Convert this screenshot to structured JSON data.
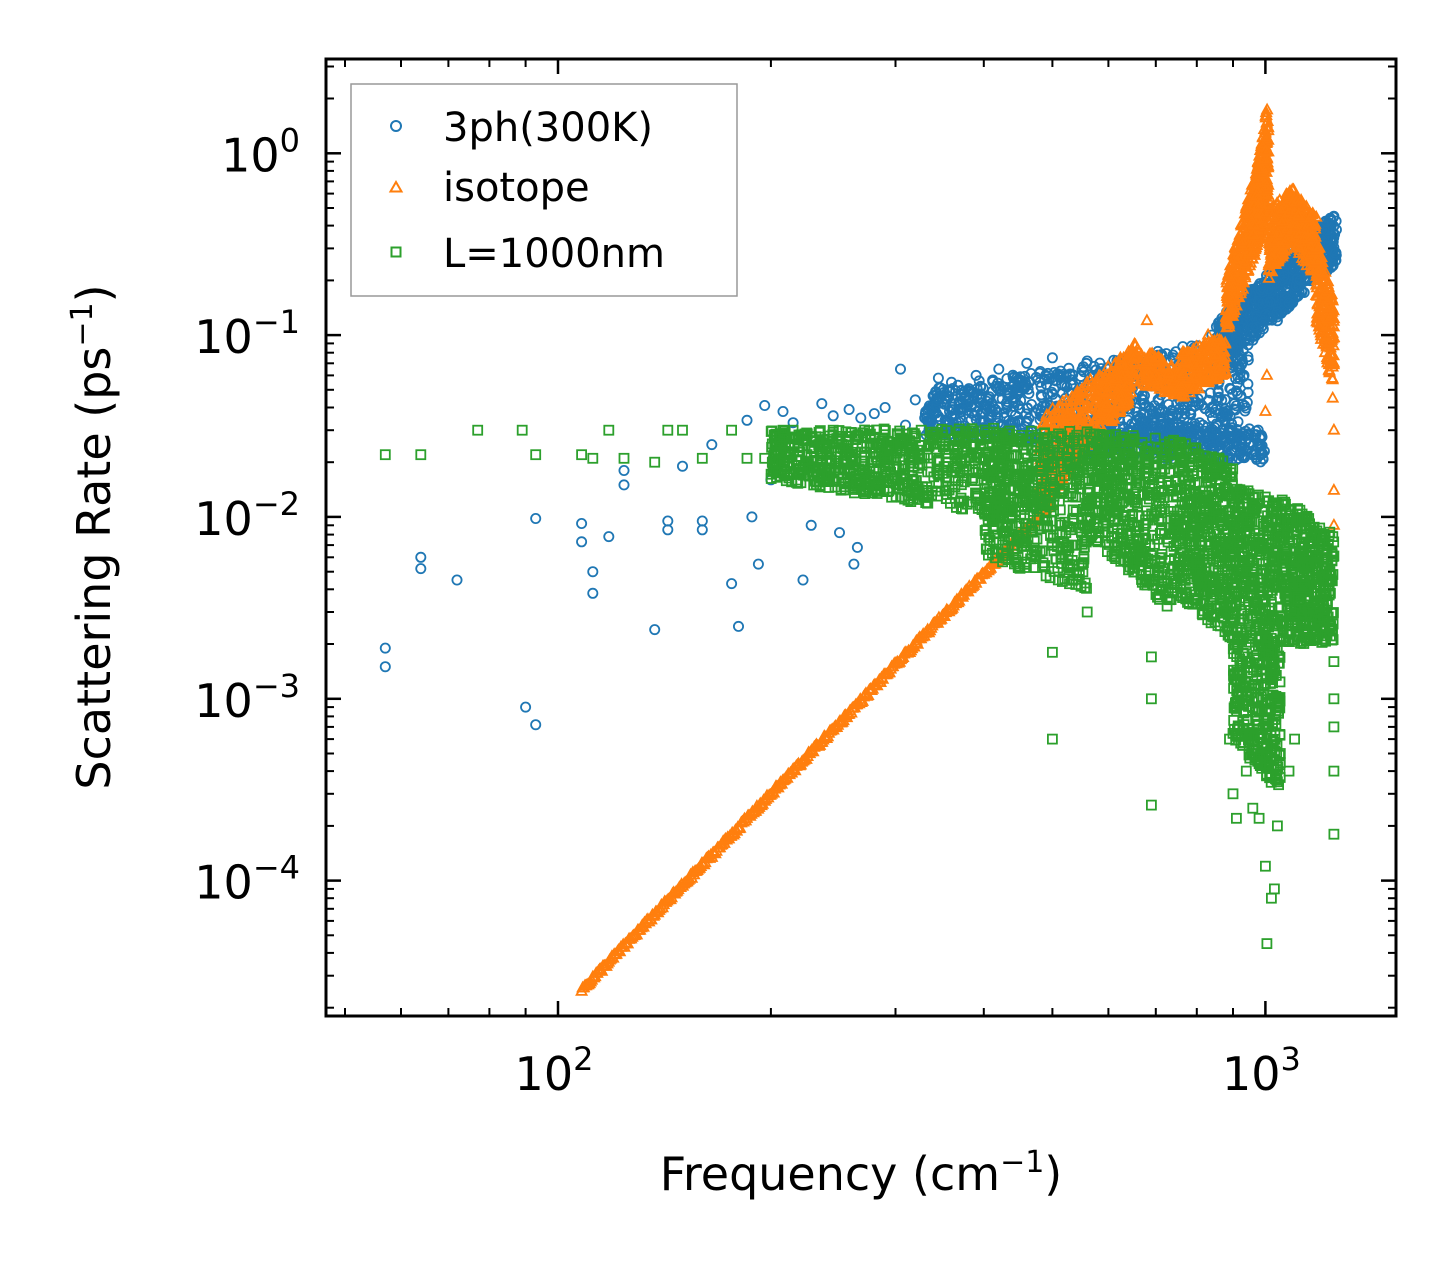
{
  "chart_data": {
    "type": "scatter",
    "title": "",
    "xlabel": "Frequency (cm$^{-1}$)",
    "xlabel_base": "Frequency (cm",
    "xlabel_sup": "−1",
    "xlabel_end": ")",
    "ylabel_base": "Scattering Rate (ps",
    "ylabel_sup": "−1",
    "ylabel_end": ")",
    "xscale": "log",
    "yscale": "log",
    "xlim": [
      47,
      1530
    ],
    "ylim": [
      1.8e-05,
      3.3
    ],
    "x_ticks": [
      {
        "value": 100,
        "base": "10",
        "exp": "2"
      },
      {
        "value": 1000,
        "base": "10",
        "exp": "3"
      }
    ],
    "y_ticks": [
      {
        "value": 1,
        "base": "10",
        "exp": "0"
      },
      {
        "value": 0.1,
        "base": "10",
        "exp": "−1"
      },
      {
        "value": 0.01,
        "base": "10",
        "exp": "−2"
      },
      {
        "value": 0.001,
        "base": "10",
        "exp": "−3"
      },
      {
        "value": 0.0001,
        "base": "10",
        "exp": "−4"
      }
    ],
    "legend_position": "top-left",
    "series": [
      {
        "name": "3ph(300K)",
        "marker": "circle",
        "color": "#1f77b4",
        "points": [
          [
            57,
            0.0019
          ],
          [
            57,
            0.0015
          ],
          [
            64,
            0.006
          ],
          [
            64,
            0.0052
          ],
          [
            72,
            0.0045
          ],
          [
            90,
            0.0009
          ],
          [
            93,
            0.00072
          ],
          [
            93,
            0.0098
          ],
          [
            108,
            0.0092
          ],
          [
            108,
            0.0073
          ],
          [
            112,
            0.005
          ],
          [
            112,
            0.0038
          ],
          [
            118,
            0.0078
          ],
          [
            124,
            0.018
          ],
          [
            124,
            0.015
          ],
          [
            137,
            0.0024
          ],
          [
            143,
            0.0095
          ],
          [
            143,
            0.0085
          ],
          [
            150,
            0.019
          ],
          [
            160,
            0.0095
          ],
          [
            160,
            0.0085
          ],
          [
            165,
            0.025
          ],
          [
            176,
            0.0043
          ],
          [
            180,
            0.0025
          ],
          [
            185,
            0.034
          ],
          [
            188,
            0.01
          ],
          [
            192,
            0.0055
          ],
          [
            196,
            0.041
          ],
          [
            200,
            0.016
          ],
          [
            208,
            0.038
          ],
          [
            215,
            0.033
          ],
          [
            222,
            0.0045
          ],
          [
            228,
            0.009
          ],
          [
            236,
            0.042
          ],
          [
            245,
            0.036
          ],
          [
            250,
            0.0082
          ],
          [
            258,
            0.039
          ],
          [
            262,
            0.0055
          ],
          [
            265,
            0.0068
          ],
          [
            268,
            0.035
          ],
          [
            280,
            0.037
          ],
          [
            290,
            0.04
          ],
          [
            305,
            0.065
          ],
          [
            310,
            0.032
          ],
          [
            320,
            0.044
          ],
          [
            330,
            0.035
          ],
          [
            345,
            0.058
          ],
          [
            350,
            0.038
          ],
          [
            360,
            0.055
          ],
          [
            375,
            0.045
          ],
          [
            390,
            0.06
          ],
          [
            400,
            0.04
          ],
          [
            420,
            0.065
          ],
          [
            440,
            0.05
          ],
          [
            460,
            0.07
          ],
          [
            480,
            0.055
          ],
          [
            500,
            0.075
          ],
          [
            530,
            0.06
          ],
          [
            560,
            0.072
          ],
          [
            600,
            0.065
          ],
          [
            640,
            0.07
          ],
          [
            690,
            0.068
          ],
          [
            740,
            0.075
          ],
          [
            790,
            0.08
          ],
          [
            840,
            0.1
          ],
          [
            880,
            0.09
          ],
          [
            910,
            0.025
          ],
          [
            930,
            0.023
          ],
          [
            960,
            0.11
          ],
          [
            1000,
            0.13
          ],
          [
            1040,
            0.12
          ],
          [
            1080,
            0.15
          ],
          [
            1120,
            0.2
          ],
          [
            1150,
            0.25
          ],
          [
            1180,
            0.32
          ],
          [
            1220,
            0.42
          ],
          [
            1250,
            0.45
          ],
          [
            1260,
            0.38
          ]
        ],
        "bands": [
          {
            "x_from": 330,
            "x_to": 950,
            "y_from_lo": 0.028,
            "y_from_hi": 0.05,
            "y_to_lo": 0.024,
            "y_to_hi": 0.1,
            "count": 900
          },
          {
            "x_from": 500,
            "x_to": 1000,
            "y_from_lo": 0.022,
            "y_from_hi": 0.035,
            "y_to_lo": 0.02,
            "y_to_hi": 0.03,
            "count": 350
          },
          {
            "x_from": 850,
            "x_to": 1260,
            "y_from_lo": 0.06,
            "y_from_hi": 0.12,
            "y_to_lo": 0.25,
            "y_to_hi": 0.48,
            "count": 700
          }
        ]
      },
      {
        "name": "isotope",
        "marker": "triangle",
        "color": "#ff7f0e",
        "points": [
          [
            680,
            0.12
          ],
          [
            830,
            0.1
          ],
          [
            1000,
            0.038
          ],
          [
            1005,
            0.06
          ],
          [
            1250,
            0.03
          ],
          [
            1250,
            0.014
          ],
          [
            1250,
            0.009
          ],
          [
            1245,
            0.045
          ],
          [
            1240,
            0.07
          ],
          [
            1230,
            0.1
          ]
        ],
        "line": {
          "x_from": 108,
          "y_from": 2.5e-05,
          "x_to": 500,
          "y_to": 0.012,
          "count": 420
        },
        "bands": [
          {
            "x_from": 480,
            "x_to": 650,
            "y_from_lo": 0.011,
            "y_from_hi": 0.035,
            "y_to_lo": 0.045,
            "y_to_hi": 0.085,
            "count": 450
          },
          {
            "x_from": 650,
            "x_to": 760,
            "y_from_lo": 0.055,
            "y_from_hi": 0.09,
            "y_to_lo": 0.045,
            "y_to_hi": 0.065,
            "count": 150
          },
          {
            "x_from": 760,
            "x_to": 880,
            "y_from_lo": 0.045,
            "y_from_hi": 0.08,
            "y_to_lo": 0.06,
            "y_to_hi": 0.1,
            "count": 200
          },
          {
            "x_from": 880,
            "x_to": 960,
            "y_from_lo": 0.1,
            "y_from_hi": 0.2,
            "y_to_lo": 0.25,
            "y_to_hi": 0.7,
            "count": 250
          },
          {
            "x_from": 960,
            "x_to": 1010,
            "y_from_lo": 0.25,
            "y_from_hi": 0.6,
            "y_to_lo": 0.5,
            "y_to_hi": 2.0,
            "count": 320
          },
          {
            "x_from": 1010,
            "x_to": 1100,
            "y_from_lo": 0.2,
            "y_from_hi": 0.5,
            "y_to_lo": 0.35,
            "y_to_hi": 0.65,
            "count": 280
          },
          {
            "x_from": 1100,
            "x_to": 1180,
            "y_from_lo": 0.3,
            "y_from_hi": 0.6,
            "y_to_lo": 0.2,
            "y_to_hi": 0.45,
            "count": 200
          },
          {
            "x_from": 1180,
            "x_to": 1250,
            "y_from_lo": 0.12,
            "y_from_hi": 0.35,
            "y_to_lo": 0.05,
            "y_to_hi": 0.15,
            "count": 180
          }
        ]
      },
      {
        "name": "L=1000nm",
        "marker": "square",
        "color": "#2ca02c",
        "points": [
          [
            57,
            0.022
          ],
          [
            64,
            0.022
          ],
          [
            77,
            0.03
          ],
          [
            89,
            0.03
          ],
          [
            93,
            0.022
          ],
          [
            108,
            0.022
          ],
          [
            112,
            0.021
          ],
          [
            118,
            0.03
          ],
          [
            124,
            0.021
          ],
          [
            137,
            0.02
          ],
          [
            143,
            0.03
          ],
          [
            150,
            0.03
          ],
          [
            160,
            0.021
          ],
          [
            176,
            0.03
          ],
          [
            185,
            0.021
          ],
          [
            196,
            0.021
          ],
          [
            208,
            0.03
          ],
          [
            215,
            0.03
          ],
          [
            236,
            0.021
          ],
          [
            245,
            0.03
          ],
          [
            500,
            0.0006
          ],
          [
            500,
            0.0018
          ],
          [
            560,
            0.003
          ],
          [
            690,
            0.0017
          ],
          [
            690,
            0.001
          ],
          [
            690,
            0.00026
          ],
          [
            890,
            0.0006
          ],
          [
            900,
            0.0003
          ],
          [
            910,
            0.00022
          ],
          [
            940,
            0.0004
          ],
          [
            960,
            0.00025
          ],
          [
            980,
            0.00022
          ],
          [
            1000,
            0.00012
          ],
          [
            1005,
            4.5e-05
          ],
          [
            1020,
            8e-05
          ],
          [
            1030,
            9e-05
          ],
          [
            1040,
            0.0002
          ],
          [
            1050,
            0.0005
          ],
          [
            1080,
            0.0004
          ],
          [
            1100,
            0.0006
          ],
          [
            1250,
            0.00018
          ],
          [
            1250,
            0.0004
          ],
          [
            1250,
            0.0007
          ],
          [
            1250,
            0.001
          ],
          [
            1250,
            0.0016
          ]
        ],
        "bands": [
          {
            "x_from": 200,
            "x_to": 430,
            "y_from_lo": 0.016,
            "y_from_hi": 0.03,
            "y_to_lo": 0.01,
            "y_to_hi": 0.031,
            "count": 700
          },
          {
            "x_from": 400,
            "x_to": 560,
            "y_from_lo": 0.006,
            "y_from_hi": 0.03,
            "y_to_lo": 0.004,
            "y_to_hi": 0.03,
            "count": 500
          },
          {
            "x_from": 560,
            "x_to": 740,
            "y_from_lo": 0.008,
            "y_from_hi": 0.03,
            "y_to_lo": 0.003,
            "y_to_hi": 0.027,
            "count": 500
          },
          {
            "x_from": 740,
            "x_to": 900,
            "y_from_lo": 0.004,
            "y_from_hi": 0.027,
            "y_to_lo": 0.002,
            "y_to_hi": 0.02,
            "count": 500
          },
          {
            "x_from": 900,
            "x_to": 1050,
            "y_from_lo": 0.0006,
            "y_from_hi": 0.015,
            "y_to_lo": 0.0003,
            "y_to_hi": 0.012,
            "count": 650
          },
          {
            "x_from": 1050,
            "x_to": 1250,
            "y_from_lo": 0.002,
            "y_from_hi": 0.013,
            "y_to_lo": 0.002,
            "y_to_hi": 0.008,
            "count": 450
          }
        ]
      }
    ]
  }
}
